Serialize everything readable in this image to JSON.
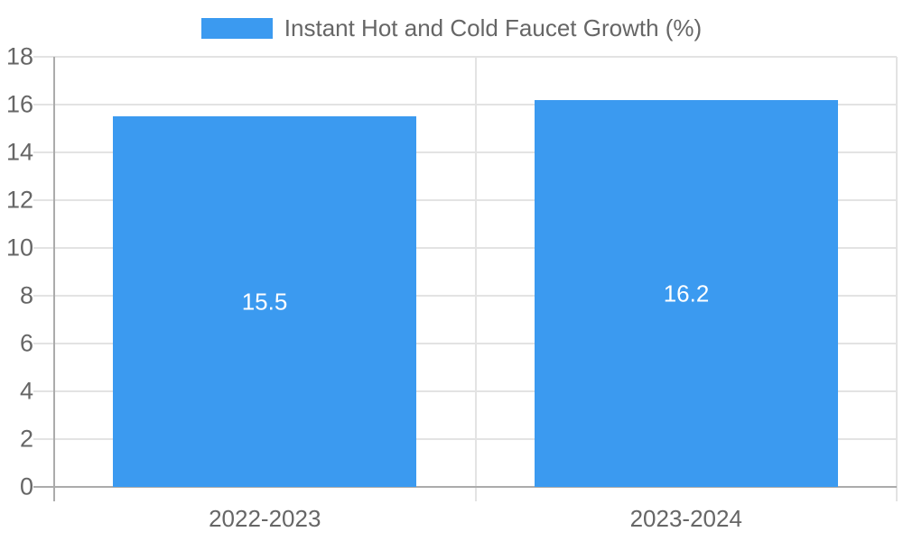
{
  "legend": {
    "position": "top",
    "items": [
      {
        "label": "Instant Hot and Cold Faucet Growth (%)",
        "color": "#3b9af0"
      }
    ]
  },
  "chart_data": {
    "type": "bar",
    "title": "Instant Hot and Cold Faucet Growth (%)",
    "categories": [
      "2022-2023",
      "2023-2024"
    ],
    "values": [
      15.5,
      16.2
    ],
    "value_labels": [
      "15.5",
      "16.2"
    ],
    "xlabel": "",
    "ylabel": "",
    "ylim": [
      0,
      18
    ],
    "ytick_step": 2,
    "ytick_labels": [
      "0",
      "2",
      "4",
      "6",
      "8",
      "10",
      "12",
      "14",
      "16",
      "18"
    ],
    "grid": true,
    "legend_position": "top-center",
    "colors": {
      "bar": "#3b9af0",
      "grid": "#e3e3e3",
      "axis": "#ababab",
      "tick_text": "#666666",
      "value_label_text": "#ffffff",
      "background": "#ffffff"
    }
  }
}
